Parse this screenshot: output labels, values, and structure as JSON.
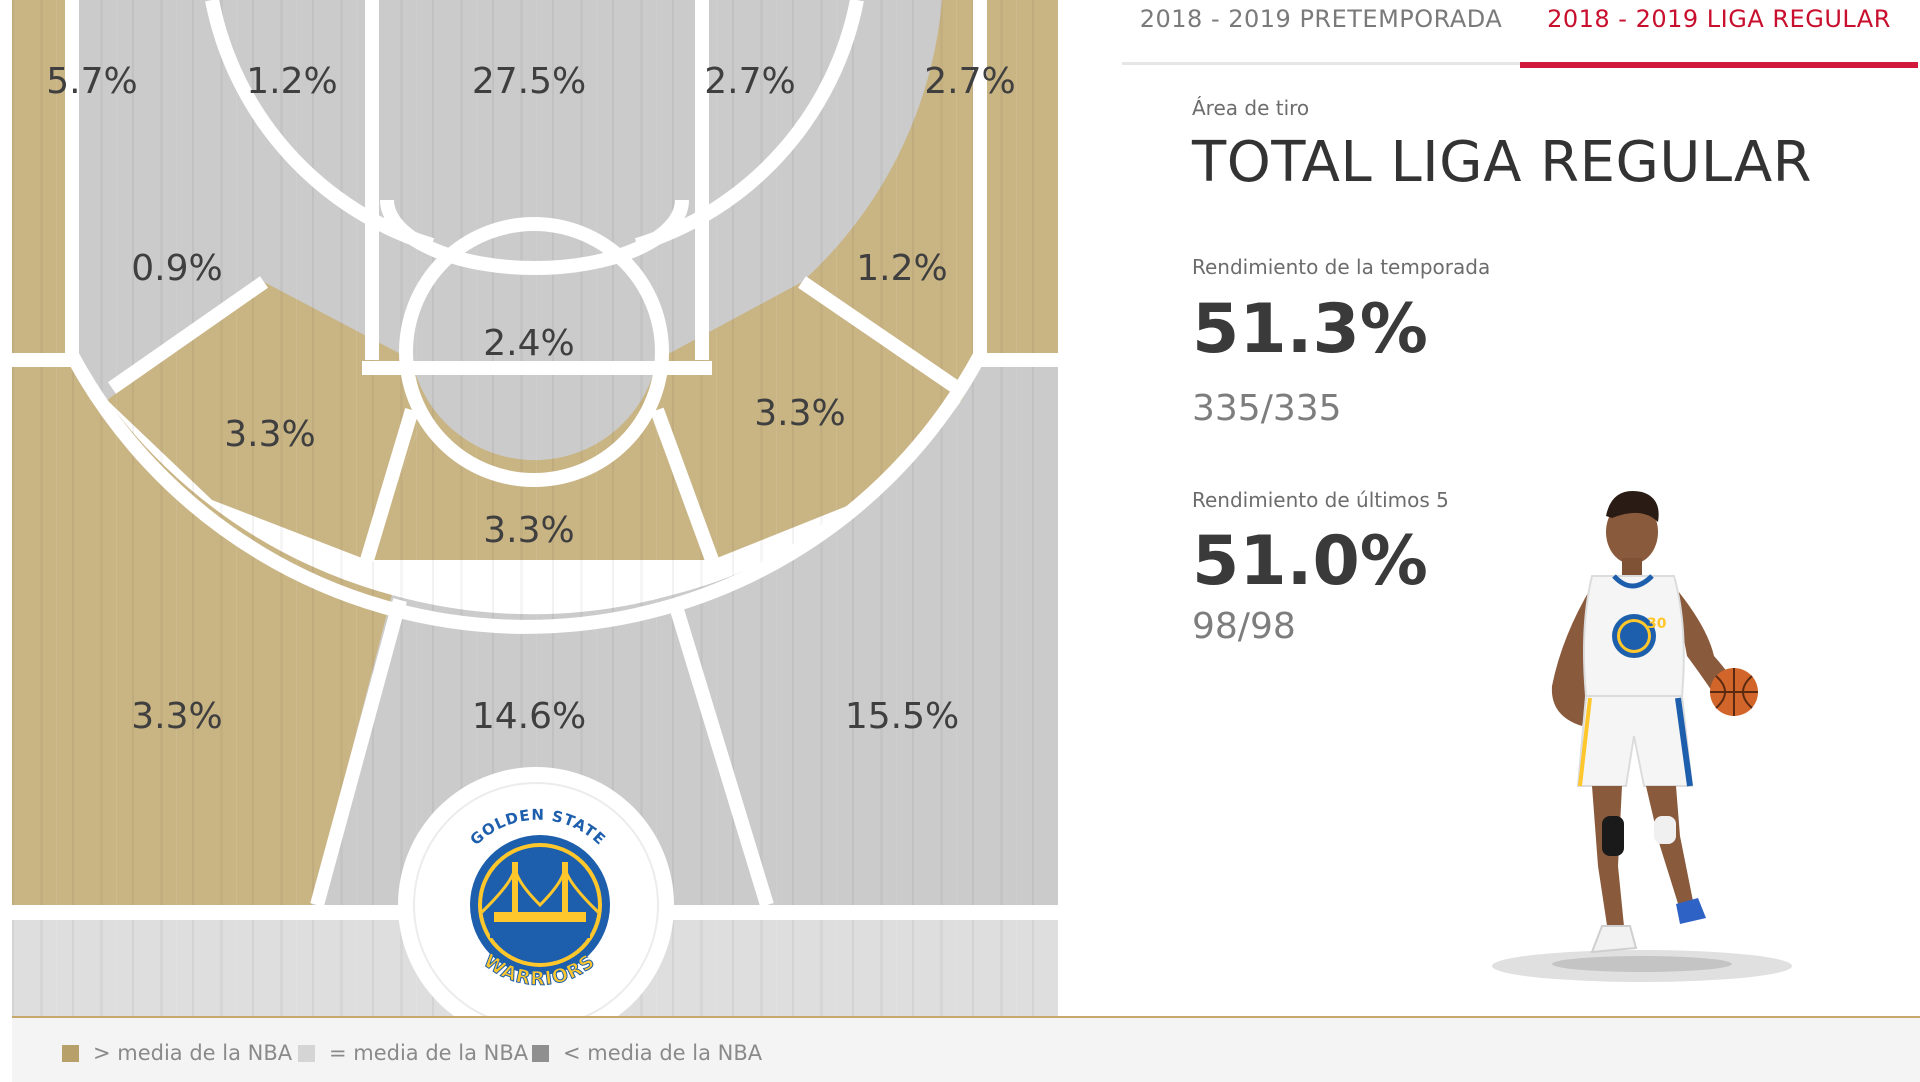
{
  "tabs": [
    {
      "label": "2018 - 2019 PRETEMPORADA",
      "active": false
    },
    {
      "label": "2018 - 2019 LIGA REGULAR",
      "active": true
    }
  ],
  "panel": {
    "area_label": "Área de tiro",
    "area_title": "TOTAL LIGA REGULAR",
    "season_label": "Rendimiento de la temporada",
    "season_value": "51.3%",
    "season_ratio": "335/335",
    "last5_label": "Rendimiento de últimos 5",
    "last5_value": "51.0%",
    "last5_ratio": "98/98"
  },
  "court": {
    "zones": [
      {
        "id": "left-corner-3",
        "label": "5.7%",
        "rating": "above"
      },
      {
        "id": "left-baseline-2",
        "label": "1.2%",
        "rating": "equal"
      },
      {
        "id": "paint",
        "label": "27.5%",
        "rating": "equal"
      },
      {
        "id": "right-baseline-2",
        "label": "2.7%",
        "rating": "equal"
      },
      {
        "id": "right-corner-3",
        "label": "2.7%",
        "rating": "above"
      },
      {
        "id": "left-wing-mid",
        "label": "0.9%",
        "rating": "equal"
      },
      {
        "id": "right-wing-mid",
        "label": "1.2%",
        "rating": "above"
      },
      {
        "id": "free-throw",
        "label": "2.4%",
        "rating": "equal"
      },
      {
        "id": "left-elbow-mid",
        "label": "3.3%",
        "rating": "above"
      },
      {
        "id": "right-elbow-mid",
        "label": "3.3%",
        "rating": "above"
      },
      {
        "id": "top-key-mid",
        "label": "3.3%",
        "rating": "above"
      },
      {
        "id": "left-wing-3",
        "label": "3.3%",
        "rating": "above"
      },
      {
        "id": "top-3",
        "label": "14.6%",
        "rating": "equal"
      },
      {
        "id": "right-wing-3",
        "label": "15.5%",
        "rating": "equal"
      }
    ],
    "team_logo": {
      "icon": "golden-state-warriors-logo",
      "top_text": "GOLDEN STATE",
      "bottom_text": "WARRIORS"
    },
    "colors": {
      "above": "#c9b484",
      "equal": "#cbcbcb",
      "below": "#8f8f8f",
      "lines": "#ffffff"
    }
  },
  "player_image": {
    "icon": "player-dribbling-figure",
    "jersey_number": "30"
  },
  "legend": [
    {
      "label": "> media de la NBA",
      "color": "#b8a06a"
    },
    {
      "label": "= media de la NBA",
      "color": "#d5d5d5"
    },
    {
      "label": "< media de la NBA",
      "color": "#8f8f8f"
    }
  ],
  "accent_color": "#d11a3b"
}
